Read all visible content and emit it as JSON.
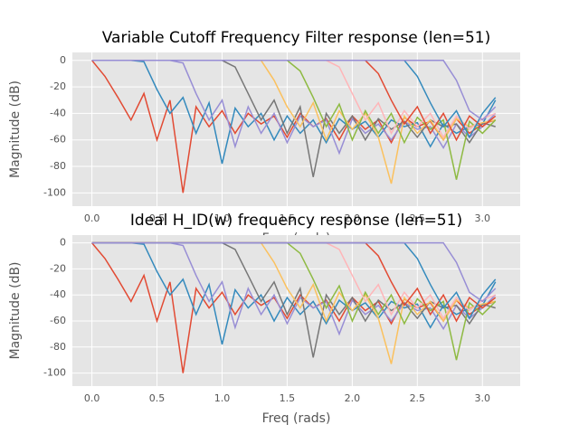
{
  "chart_data": [
    {
      "type": "line",
      "title": "Variable Cutoff Frequency Filter response (len=51)",
      "xlabel": "Freq (rads)",
      "ylabel": "Magnitude (dB)",
      "xlim": [
        -0.15,
        3.29
      ],
      "ylim": [
        -110,
        6
      ],
      "xticks": [
        {
          "value": 0,
          "label": "0.0"
        },
        0.5,
        {
          "value": 1,
          "label": "1.0"
        },
        1.5,
        {
          "value": 2,
          "label": "2.0"
        },
        2.5,
        {
          "value": 3,
          "label": "3.0"
        }
      ],
      "yticks": [
        0,
        -20,
        -40,
        -60,
        -80,
        -100
      ],
      "grid": true,
      "x": [
        0,
        0.1,
        0.2,
        0.3,
        0.4,
        0.5,
        0.6,
        0.7,
        0.8,
        0.9,
        1.0,
        1.1,
        1.2,
        1.3,
        1.4,
        1.5,
        1.6,
        1.7,
        1.8,
        1.9,
        2.0,
        2.1,
        2.2,
        2.3,
        2.4,
        2.5,
        2.6,
        2.7,
        2.8,
        2.9,
        3.0,
        3.1
      ],
      "series": [
        {
          "color": "#E24A33",
          "values": [
            0,
            -12,
            -28,
            -45,
            -25,
            -60,
            -30,
            -100,
            -35,
            -50,
            -38,
            -55,
            -40,
            -48,
            -42,
            -58,
            -40,
            -50,
            -44,
            -60,
            -42,
            -52,
            -45,
            -62,
            -43,
            -50,
            -46,
            -60,
            -44,
            -55,
            -48,
            -45
          ]
        },
        {
          "color": "#348ABD",
          "values": [
            0,
            0,
            0,
            0,
            -1,
            -22,
            -40,
            -28,
            -55,
            -32,
            -78,
            -36,
            -50,
            -40,
            -60,
            -42,
            -55,
            -45,
            -62,
            -44,
            -52,
            -46,
            -58,
            -45,
            -50,
            -47,
            -65,
            -48,
            -55,
            -50,
            -48,
            -30
          ]
        },
        {
          "color": "#988ED5",
          "values": [
            0,
            0,
            0,
            0,
            0,
            0,
            0,
            -2,
            -25,
            -45,
            -30,
            -65,
            -35,
            -55,
            -40,
            -62,
            -42,
            -50,
            -45,
            -70,
            -44,
            -55,
            -48,
            -60,
            -46,
            -52,
            -50,
            -66,
            -48,
            -58,
            -50,
            -40
          ]
        },
        {
          "color": "#777777",
          "values": [
            0,
            0,
            0,
            0,
            0,
            0,
            0,
            0,
            0,
            0,
            0,
            -5,
            -25,
            -45,
            -30,
            -55,
            -35,
            -88,
            -40,
            -55,
            -42,
            -60,
            -44,
            -52,
            -46,
            -58,
            -45,
            -50,
            -48,
            -62,
            -47,
            -50
          ]
        },
        {
          "color": "#FBC15E",
          "values": [
            0,
            0,
            0,
            0,
            0,
            0,
            0,
            0,
            0,
            0,
            0,
            0,
            0,
            0,
            -15,
            -35,
            -50,
            -32,
            -60,
            -38,
            -52,
            -40,
            -58,
            -93,
            -42,
            -55,
            -45,
            -60,
            -44,
            -50,
            -47,
            -45
          ]
        },
        {
          "color": "#8EBA42",
          "values": [
            0,
            0,
            0,
            0,
            0,
            0,
            0,
            0,
            0,
            0,
            0,
            0,
            0,
            0,
            0,
            0,
            -8,
            -28,
            -50,
            -33,
            -60,
            -38,
            -55,
            -40,
            -62,
            -43,
            -52,
            -45,
            -90,
            -46,
            -55,
            -45
          ]
        },
        {
          "color": "#FFB5B8",
          "values": [
            0,
            0,
            0,
            0,
            0,
            0,
            0,
            0,
            0,
            0,
            0,
            0,
            0,
            0,
            0,
            0,
            0,
            0,
            0,
            -5,
            -25,
            -45,
            -32,
            -55,
            -38,
            -50,
            -40,
            -58,
            -42,
            -52,
            -44,
            -40
          ]
        },
        {
          "color": "#E24A33",
          "values": [
            0,
            0,
            0,
            0,
            0,
            0,
            0,
            0,
            0,
            0,
            0,
            0,
            0,
            0,
            0,
            0,
            0,
            0,
            0,
            0,
            0,
            0,
            -10,
            -30,
            -48,
            -35,
            -55,
            -40,
            -60,
            -42,
            -50,
            -42
          ]
        },
        {
          "color": "#348ABD",
          "values": [
            0,
            0,
            0,
            0,
            0,
            0,
            0,
            0,
            0,
            0,
            0,
            0,
            0,
            0,
            0,
            0,
            0,
            0,
            0,
            0,
            0,
            0,
            0,
            0,
            0,
            -12,
            -32,
            -50,
            -38,
            -58,
            -40,
            -28
          ]
        },
        {
          "color": "#988ED5",
          "values": [
            0,
            0,
            0,
            0,
            0,
            0,
            0,
            0,
            0,
            0,
            0,
            0,
            0,
            0,
            0,
            0,
            0,
            0,
            0,
            0,
            0,
            0,
            0,
            0,
            0,
            0,
            0,
            0,
            -15,
            -38,
            -45,
            -35
          ]
        }
      ]
    },
    {
      "type": "line",
      "title": "Ideal H_ID(w) frequency response (len=51)",
      "xlabel": "Freq (rads)",
      "ylabel": "Magnitude (dB)",
      "xlim": [
        -0.15,
        3.29
      ],
      "ylim": [
        -110,
        6
      ],
      "xticks": [
        {
          "value": 0,
          "label": "0.0"
        },
        0.5,
        {
          "value": 1,
          "label": "1.0"
        },
        1.5,
        {
          "value": 2,
          "label": "2.0"
        },
        2.5,
        {
          "value": 3,
          "label": "3.0"
        }
      ],
      "yticks": [
        0,
        -20,
        -40,
        -60,
        -80,
        -100
      ],
      "grid": true,
      "x": [
        0,
        0.1,
        0.2,
        0.3,
        0.4,
        0.5,
        0.6,
        0.7,
        0.8,
        0.9,
        1.0,
        1.1,
        1.2,
        1.3,
        1.4,
        1.5,
        1.6,
        1.7,
        1.8,
        1.9,
        2.0,
        2.1,
        2.2,
        2.3,
        2.4,
        2.5,
        2.6,
        2.7,
        2.8,
        2.9,
        3.0,
        3.1
      ],
      "series": [
        {
          "color": "#E24A33",
          "values": [
            0,
            -12,
            -28,
            -45,
            -25,
            -60,
            -30,
            -100,
            -35,
            -50,
            -38,
            -55,
            -40,
            -48,
            -42,
            -58,
            -40,
            -50,
            -44,
            -60,
            -42,
            -52,
            -45,
            -62,
            -43,
            -50,
            -46,
            -60,
            -44,
            -55,
            -48,
            -45
          ]
        },
        {
          "color": "#348ABD",
          "values": [
            0,
            0,
            0,
            0,
            -1,
            -22,
            -40,
            -28,
            -55,
            -32,
            -78,
            -36,
            -50,
            -40,
            -60,
            -42,
            -55,
            -45,
            -62,
            -44,
            -52,
            -46,
            -58,
            -45,
            -50,
            -47,
            -65,
            -48,
            -55,
            -50,
            -48,
            -30
          ]
        },
        {
          "color": "#988ED5",
          "values": [
            0,
            0,
            0,
            0,
            0,
            0,
            0,
            -2,
            -25,
            -45,
            -30,
            -65,
            -35,
            -55,
            -40,
            -62,
            -42,
            -50,
            -45,
            -70,
            -44,
            -55,
            -48,
            -60,
            -46,
            -52,
            -50,
            -66,
            -48,
            -58,
            -50,
            -40
          ]
        },
        {
          "color": "#777777",
          "values": [
            0,
            0,
            0,
            0,
            0,
            0,
            0,
            0,
            0,
            0,
            0,
            -5,
            -25,
            -45,
            -30,
            -55,
            -35,
            -88,
            -40,
            -55,
            -42,
            -60,
            -44,
            -52,
            -46,
            -58,
            -45,
            -50,
            -48,
            -62,
            -47,
            -50
          ]
        },
        {
          "color": "#FBC15E",
          "values": [
            0,
            0,
            0,
            0,
            0,
            0,
            0,
            0,
            0,
            0,
            0,
            0,
            0,
            0,
            -15,
            -35,
            -50,
            -32,
            -60,
            -38,
            -52,
            -40,
            -58,
            -93,
            -42,
            -55,
            -45,
            -60,
            -44,
            -50,
            -47,
            -45
          ]
        },
        {
          "color": "#8EBA42",
          "values": [
            0,
            0,
            0,
            0,
            0,
            0,
            0,
            0,
            0,
            0,
            0,
            0,
            0,
            0,
            0,
            0,
            -8,
            -28,
            -50,
            -33,
            -60,
            -38,
            -55,
            -40,
            -62,
            -43,
            -52,
            -45,
            -90,
            -46,
            -55,
            -45
          ]
        },
        {
          "color": "#FFB5B8",
          "values": [
            0,
            0,
            0,
            0,
            0,
            0,
            0,
            0,
            0,
            0,
            0,
            0,
            0,
            0,
            0,
            0,
            0,
            0,
            0,
            -5,
            -25,
            -45,
            -32,
            -55,
            -38,
            -50,
            -40,
            -58,
            -42,
            -52,
            -44,
            -40
          ]
        },
        {
          "color": "#E24A33",
          "values": [
            0,
            0,
            0,
            0,
            0,
            0,
            0,
            0,
            0,
            0,
            0,
            0,
            0,
            0,
            0,
            0,
            0,
            0,
            0,
            0,
            0,
            0,
            -10,
            -30,
            -48,
            -35,
            -55,
            -40,
            -60,
            -42,
            -50,
            -42
          ]
        },
        {
          "color": "#348ABD",
          "values": [
            0,
            0,
            0,
            0,
            0,
            0,
            0,
            0,
            0,
            0,
            0,
            0,
            0,
            0,
            0,
            0,
            0,
            0,
            0,
            0,
            0,
            0,
            0,
            0,
            0,
            -12,
            -32,
            -50,
            -38,
            -58,
            -40,
            -28
          ]
        },
        {
          "color": "#988ED5",
          "values": [
            0,
            0,
            0,
            0,
            0,
            0,
            0,
            0,
            0,
            0,
            0,
            0,
            0,
            0,
            0,
            0,
            0,
            0,
            0,
            0,
            0,
            0,
            0,
            0,
            0,
            0,
            0,
            0,
            -15,
            -38,
            -45,
            -35
          ]
        }
      ]
    }
  ]
}
